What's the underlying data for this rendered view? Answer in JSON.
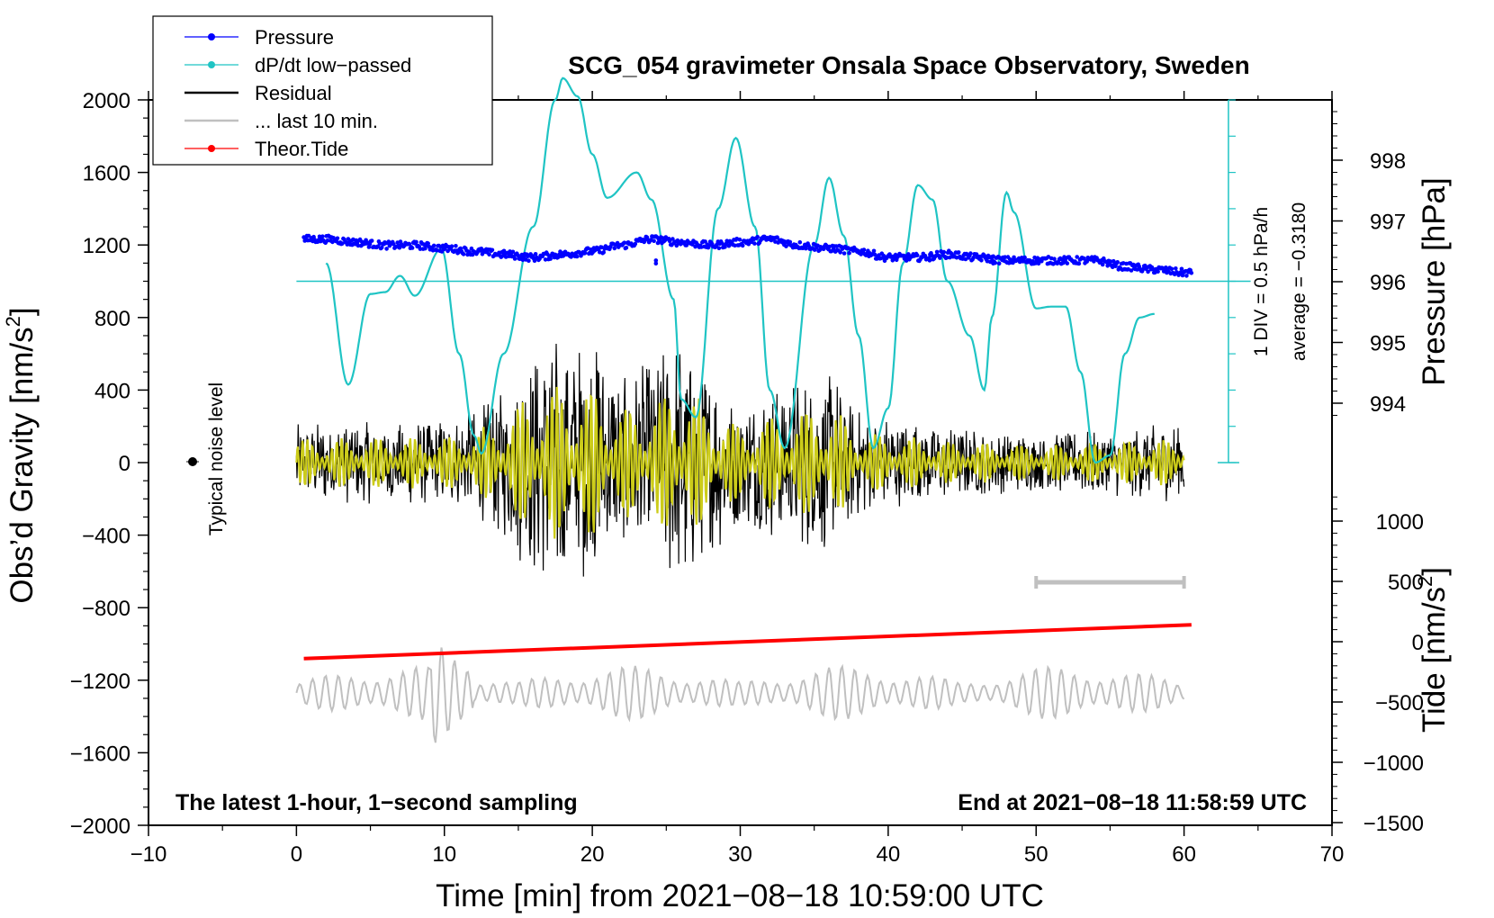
{
  "chart_data": {
    "type": "line",
    "title": "SCG_054 gravimeter Onsala Space Observatory, Sweden",
    "xlabel": "Time [min] from 2021−08−18 10:59:00 UTC",
    "xlim": [
      -10,
      70
    ],
    "xticks": [
      -10,
      0,
      10,
      20,
      30,
      40,
      50,
      60,
      70
    ],
    "xtick_labels": [
      "−10",
      "0",
      "10",
      "20",
      "30",
      "40",
      "50",
      "60",
      "70"
    ],
    "left_axis": {
      "label_main": "Obs’d Gravity [nm/s",
      "label_sup": "2",
      "label_end": "]",
      "ylim": [
        -2000,
        2000
      ],
      "ticks": [
        2000,
        1600,
        1200,
        800,
        400,
        0,
        -400,
        -800,
        -1200,
        -1600,
        -2000
      ],
      "tick_labels": [
        "2000",
        "1600",
        "1200",
        "800",
        "400",
        "0",
        "−400",
        "−800",
        "−1200",
        "−1600",
        "−2000"
      ]
    },
    "pressure_axis": {
      "label": "Pressure [hPa]",
      "ylim": [
        993,
        999
      ],
      "ticks": [
        998,
        997,
        996,
        995,
        994
      ],
      "tick_labels": [
        "998",
        "997",
        "996",
        "995",
        "994"
      ]
    },
    "tide_axis": {
      "label_main": "Tide [nm/s",
      "label_sup": "2",
      "label_end": "]",
      "ylim": [
        -1500,
        1500
      ],
      "ticks": [
        1000,
        500,
        0,
        -500,
        -1000,
        -1500
      ],
      "tick_labels": [
        "1000",
        "500",
        "0",
        "−500",
        "−1000",
        "−1500"
      ]
    },
    "dpdt_scale": {
      "div_label": "1 DIV = 0.5 hPa/h",
      "average_label": "average = −0.3180",
      "zero_line_gravity": 1000
    },
    "series": [
      {
        "name": "Pressure",
        "color": "#0000ff",
        "unit": "hPa",
        "points": [
          [
            0.5,
            996.7
          ],
          [
            2,
            996.7
          ],
          [
            4,
            996.65
          ],
          [
            6,
            996.6
          ],
          [
            8,
            996.6
          ],
          [
            10,
            996.55
          ],
          [
            12,
            996.5
          ],
          [
            14,
            996.45
          ],
          [
            16,
            996.4
          ],
          [
            18,
            996.45
          ],
          [
            20,
            996.5
          ],
          [
            22,
            996.6
          ],
          [
            24,
            996.7
          ],
          [
            26,
            996.65
          ],
          [
            28,
            996.6
          ],
          [
            30,
            996.65
          ],
          [
            32,
            996.7
          ],
          [
            34,
            996.6
          ],
          [
            36,
            996.55
          ],
          [
            38,
            996.5
          ],
          [
            40,
            996.4
          ],
          [
            42,
            996.4
          ],
          [
            44,
            996.45
          ],
          [
            46,
            996.4
          ],
          [
            48,
            996.35
          ],
          [
            50,
            996.35
          ],
          [
            52,
            996.35
          ],
          [
            54,
            996.35
          ],
          [
            56,
            996.25
          ],
          [
            58,
            996.2
          ],
          [
            60,
            996.15
          ]
        ]
      },
      {
        "name": "dP/dt low−passed",
        "color": "#1fc4c4",
        "unit": "nm/s2 (plot scale)",
        "points": [
          [
            2,
            1100
          ],
          [
            3.5,
            430
          ],
          [
            5,
            930
          ],
          [
            6,
            940
          ],
          [
            7,
            1030
          ],
          [
            8,
            920
          ],
          [
            9.8,
            1180
          ],
          [
            11,
            600
          ],
          [
            12,
            150
          ],
          [
            12.5,
            50
          ],
          [
            14,
            600
          ],
          [
            16,
            1300
          ],
          [
            17.5,
            2000
          ],
          [
            18,
            2120
          ],
          [
            19,
            2020
          ],
          [
            20,
            1700
          ],
          [
            21,
            1460
          ],
          [
            23,
            1600
          ],
          [
            24,
            1450
          ],
          [
            25.5,
            900
          ],
          [
            26,
            350
          ],
          [
            27,
            250
          ],
          [
            28.5,
            1400
          ],
          [
            29.7,
            1790
          ],
          [
            31,
            1300
          ],
          [
            32,
            400
          ],
          [
            33,
            80
          ],
          [
            35,
            1200
          ],
          [
            36,
            1570
          ],
          [
            37,
            1250
          ],
          [
            38,
            700
          ],
          [
            39,
            80
          ],
          [
            40,
            300
          ],
          [
            41,
            1100
          ],
          [
            42,
            1530
          ],
          [
            43,
            1450
          ],
          [
            44,
            1000
          ],
          [
            45.5,
            700
          ],
          [
            46.5,
            400
          ],
          [
            47,
            800
          ],
          [
            48,
            1490
          ],
          [
            48.5,
            1380
          ],
          [
            50,
            850
          ],
          [
            51,
            860
          ],
          [
            52,
            860
          ],
          [
            53,
            500
          ],
          [
            54,
            0
          ],
          [
            55,
            40
          ],
          [
            56,
            600
          ],
          [
            57,
            800
          ],
          [
            58,
            820
          ]
        ]
      },
      {
        "name": "Residual",
        "color": "#000000",
        "unit": "nm/s2",
        "envelope": [
          [
            0,
            220
          ],
          [
            5,
            230
          ],
          [
            10,
            240
          ],
          [
            12,
            300
          ],
          [
            14,
            420
          ],
          [
            16,
            650
          ],
          [
            18,
            720
          ],
          [
            20,
            680
          ],
          [
            22,
            500
          ],
          [
            24,
            560
          ],
          [
            26,
            720
          ],
          [
            28,
            520
          ],
          [
            30,
            350
          ],
          [
            32,
            420
          ],
          [
            34,
            480
          ],
          [
            36,
            520
          ],
          [
            38,
            300
          ],
          [
            40,
            250
          ],
          [
            45,
            190
          ],
          [
            50,
            160
          ],
          [
            55,
            190
          ],
          [
            60,
            220
          ]
        ]
      },
      {
        "name": "... last 10 min.",
        "color": "#c0c0c0",
        "unit": "nm/s2 (offset)",
        "baseline": -1270
      },
      {
        "name": "Theor.Tide",
        "color": "#ff0000",
        "unit": "nm/s2",
        "points": [
          [
            0.5,
            -140
          ],
          [
            60.5,
            140
          ]
        ]
      },
      {
        "name": "residual low-pass",
        "color": "#cccc1a",
        "unit": "nm/s2"
      }
    ],
    "scale_bar": {
      "x_start": 50,
      "x_end": 60,
      "gravity": -665
    }
  },
  "annotations": {
    "typical_noise_label": "Typical noise level",
    "latest_note": "The latest 1-hour, 1−second sampling",
    "end_note": "End at 2021−08−18 11:58:59 UTC"
  },
  "legend": {
    "items": [
      {
        "label": "Pressure",
        "color": "#0000ff",
        "style": "line-dot"
      },
      {
        "label": "dP/dt low−passed",
        "color": "#1fc4c4",
        "style": "line-dot"
      },
      {
        "label": "Residual",
        "color": "#000000",
        "style": "line"
      },
      {
        "label": "... last 10 min.",
        "color": "#c0c0c0",
        "style": "line"
      },
      {
        "label": "Theor.Tide",
        "color": "#ff0000",
        "style": "line-dot"
      }
    ]
  }
}
